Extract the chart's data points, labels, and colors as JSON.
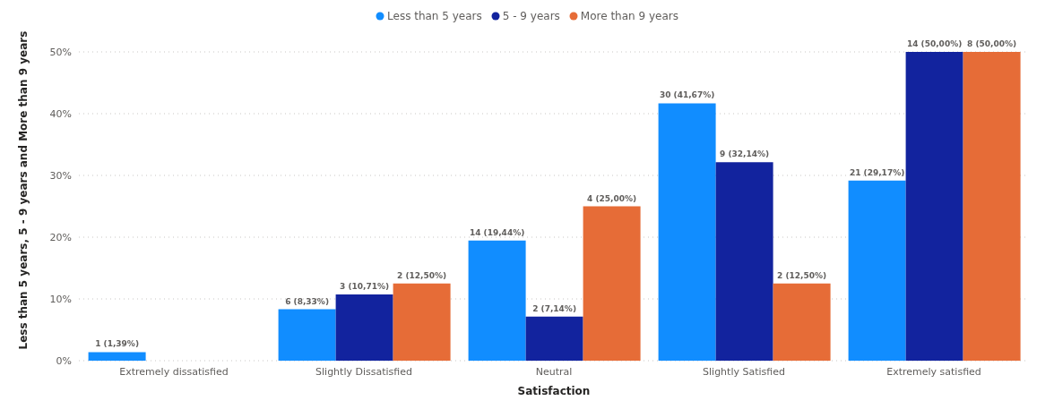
{
  "chart_data": {
    "type": "bar",
    "xlabel": "Satisfaction",
    "ylabel": "Less than 5 years, 5 - 9 years and More than 9 years",
    "categories": [
      "Extremely dissatisfied",
      "Slightly Dissatisfied",
      "Neutral",
      "Slightly Satisfied",
      "Extremely satisfied"
    ],
    "series": [
      {
        "name": "Less than 5 years",
        "color": "#118dff",
        "values": [
          1.39,
          8.33,
          19.44,
          41.67,
          29.17
        ],
        "value_labels": [
          "1 (1,39%)",
          "6 (8,33%)",
          "14 (19,44%)",
          "30 (41,67%)",
          "21 (29,17%)"
        ]
      },
      {
        "name": "5 - 9 years",
        "color": "#12239e",
        "values": [
          null,
          10.71,
          7.14,
          32.14,
          50.0
        ],
        "value_labels": [
          null,
          "3 (10,71%)",
          "2 (7,14%)",
          "9 (32,14%)",
          "14 (50,00%)"
        ]
      },
      {
        "name": "More than 9 years",
        "color": "#e66c37",
        "values": [
          null,
          12.5,
          25.0,
          12.5,
          50.0
        ],
        "value_labels": [
          null,
          "2 (12,50%)",
          "4 (25,00%)",
          "2 (12,50%)",
          "8 (50,00%)"
        ]
      }
    ],
    "ylim": [
      0,
      50
    ],
    "yticks": [
      {
        "value": 0,
        "label": "0%"
      },
      {
        "value": 10,
        "label": "10%"
      },
      {
        "value": 20,
        "label": "20%"
      },
      {
        "value": 30,
        "label": "30%"
      },
      {
        "value": 40,
        "label": "40%"
      },
      {
        "value": 50,
        "label": "50%"
      }
    ],
    "grid": "y",
    "legend": "top"
  }
}
